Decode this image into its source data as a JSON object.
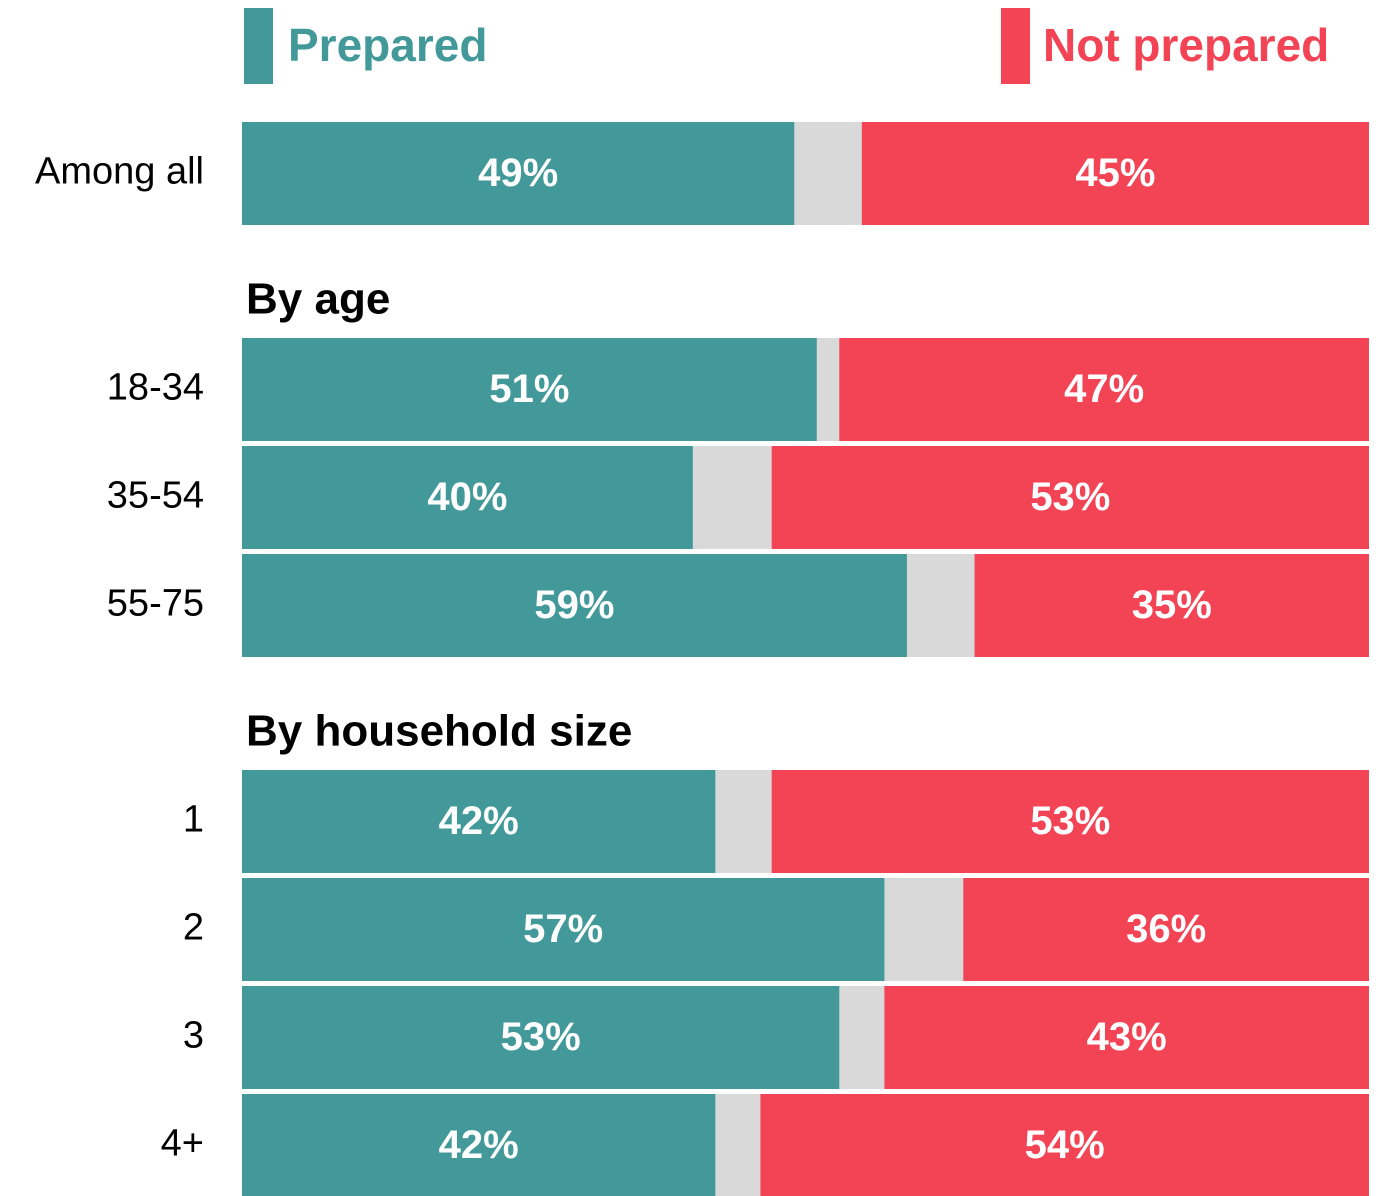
{
  "chart_data": {
    "type": "stacked-bar",
    "xlim": [
      0,
      100
    ],
    "series": [
      {
        "name": "Prepared",
        "color": "#43999a"
      },
      {
        "name": "Not prepared",
        "color": "#f24455"
      }
    ],
    "groups": [
      {
        "categories": [
          "Among all"
        ],
        "series": [
          {
            "values": [
              49
            ],
            "value_labels": [
              "49%"
            ]
          },
          {
            "values": [
              45
            ],
            "value_labels": [
              "45%"
            ]
          }
        ]
      },
      {
        "title": "By age",
        "categories": [
          "18-34",
          "35-54",
          "55-75"
        ],
        "series": [
          {
            "values": [
              51,
              40,
              59
            ],
            "value_labels": [
              "51%",
              "40%",
              "59%"
            ]
          },
          {
            "values": [
              47,
              53,
              35
            ],
            "value_labels": [
              "47%",
              "53%",
              "35%"
            ]
          }
        ]
      },
      {
        "title": "By household size",
        "categories": [
          "1",
          "2",
          "3",
          "4+"
        ],
        "series": [
          {
            "values": [
              42,
              57,
              53,
              42
            ],
            "value_labels": [
              "42%",
              "57%",
              "53%",
              "42%"
            ]
          },
          {
            "values": [
              53,
              36,
              43,
              54
            ],
            "value_labels": [
              "53%",
              "36%",
              "43%",
              "54%"
            ]
          }
        ]
      }
    ]
  }
}
